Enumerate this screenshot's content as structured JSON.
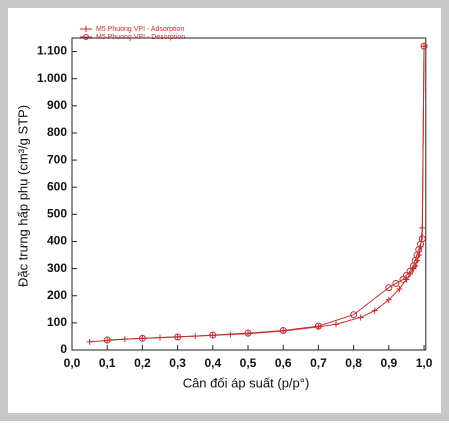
{
  "chart_data": {
    "type": "line",
    "xlabel": "Cân đối áp suất (p/p°)",
    "ylabel": "Đặc trưng hấp phụ (cm³/g STP)",
    "xlim": [
      0,
      1.005
    ],
    "ylim": [
      0,
      1150
    ],
    "xticks": [
      {
        "value": 0,
        "label": "0,0"
      },
      {
        "value": 0.1,
        "label": "0,1"
      },
      {
        "value": 0.2,
        "label": "0,2"
      },
      {
        "value": 0.3,
        "label": "0,3"
      },
      {
        "value": 0.4,
        "label": "0,4"
      },
      {
        "value": 0.5,
        "label": "0,5"
      },
      {
        "value": 0.6,
        "label": "0,6"
      },
      {
        "value": 0.7,
        "label": "0,7"
      },
      {
        "value": 0.8,
        "label": "0,8"
      },
      {
        "value": 0.9,
        "label": "0,9"
      },
      {
        "value": 1.0,
        "label": "1,0"
      }
    ],
    "yticks": [
      0,
      100,
      200,
      300,
      400,
      500,
      600,
      700,
      800,
      900,
      {
        "value": 1000,
        "label": "1.000"
      },
      {
        "value": 1100,
        "label": "1.100"
      }
    ],
    "legend": "upper left",
    "series": [
      {
        "name": "M5 Phuong VPI - Adsorption",
        "color": "#d42a2a",
        "marker": "plus",
        "x": [
          0.05,
          0.1,
          0.15,
          0.2,
          0.25,
          0.3,
          0.35,
          0.4,
          0.45,
          0.5,
          0.6,
          0.7,
          0.75,
          0.82,
          0.86,
          0.9,
          0.93,
          0.95,
          0.96,
          0.97,
          0.975,
          0.98,
          0.985,
          0.99,
          0.995,
          1.0
        ],
        "values": [
          30,
          35,
          40,
          43,
          46,
          49,
          51,
          54,
          57,
          60,
          70,
          85,
          95,
          120,
          145,
          185,
          225,
          260,
          280,
          300,
          310,
          330,
          350,
          380,
          450,
          1120
        ]
      },
      {
        "name": "M5 Phuong VPI - Desorption",
        "color": "#c43030",
        "marker": "circle",
        "x": [
          1.0,
          0.995,
          0.99,
          0.985,
          0.98,
          0.975,
          0.97,
          0.96,
          0.95,
          0.94,
          0.92,
          0.9,
          0.8,
          0.7,
          0.6,
          0.5,
          0.4,
          0.3,
          0.2,
          0.1
        ],
        "values": [
          1120,
          410,
          390,
          370,
          350,
          330,
          310,
          290,
          275,
          260,
          245,
          230,
          130,
          88,
          72,
          62,
          55,
          48,
          43,
          37
        ]
      }
    ]
  }
}
